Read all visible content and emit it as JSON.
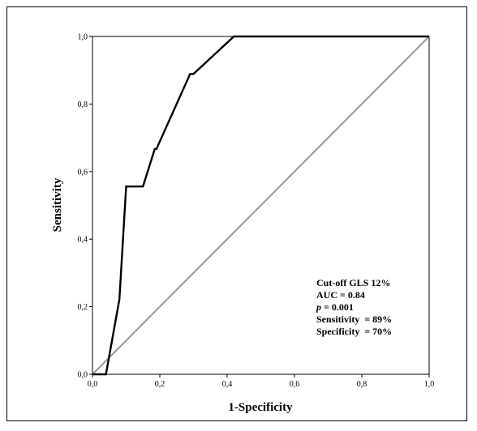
{
  "chart_data": {
    "type": "line",
    "title": "",
    "xlabel": "1-Specificity",
    "ylabel": "Sensitivity",
    "xlim": [
      0,
      1
    ],
    "ylim": [
      0,
      1
    ],
    "x_ticks": [
      "0,0",
      "0,2",
      "0,4",
      "0,6",
      "0,8",
      "1,0"
    ],
    "y_ticks": [
      "0,0",
      "0,2",
      "0,4",
      "0,6",
      "0,8",
      "1,0"
    ],
    "grid": false,
    "legend": "none",
    "series": [
      {
        "color": "#000000",
        "points": [
          [
            0.0,
            0.0
          ],
          [
            0.04,
            0.0
          ],
          [
            0.08,
            0.222
          ],
          [
            0.1,
            0.556
          ],
          [
            0.15,
            0.556
          ],
          [
            0.185,
            0.667
          ],
          [
            0.19,
            0.667
          ],
          [
            0.29,
            0.889
          ],
          [
            0.3,
            0.889
          ],
          [
            0.42,
            1.0
          ],
          [
            1.0,
            1.0
          ]
        ]
      },
      {
        "color": "#999999",
        "points": [
          [
            0.0,
            0.0
          ],
          [
            1.0,
            1.0
          ]
        ]
      }
    ],
    "annotations": {
      "cutoff": "Cut-off GLS 12%",
      "auc": "AUC = 0.84",
      "p_symbol": "p",
      "p_value": " = 0.001",
      "sensitivity": "Sensitivity  = 89%",
      "specificity": "Specificity  = 70%"
    }
  }
}
